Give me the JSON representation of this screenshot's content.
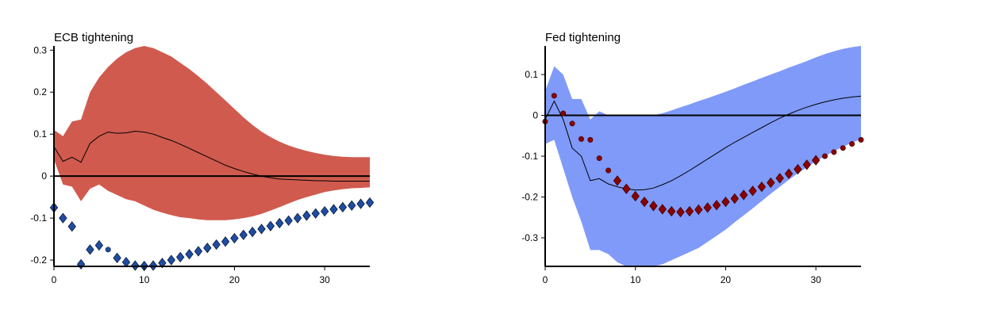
{
  "chart_data": [
    {
      "type": "line",
      "title": "ECB tightening",
      "xlim": [
        0,
        35
      ],
      "ylim": [
        -0.215,
        0.31
      ],
      "xticks": [
        0,
        10,
        20,
        30
      ],
      "yticks": [
        -0.2,
        -0.1,
        0,
        0.1,
        0.2,
        0.3
      ],
      "ytick_labels": [
        "-0.2",
        "-0.1",
        "0",
        "0.1",
        "0.2",
        "0.3"
      ],
      "colors": {
        "band": "#D05A4E",
        "line": "#000000",
        "marker": "#1E4DA1",
        "marker_edge": "#0A1A3A"
      },
      "x": [
        0,
        1,
        2,
        3,
        4,
        5,
        6,
        7,
        8,
        9,
        10,
        11,
        12,
        13,
        14,
        15,
        16,
        17,
        18,
        19,
        20,
        21,
        22,
        23,
        24,
        25,
        26,
        27,
        28,
        29,
        30,
        31,
        32,
        33,
        34,
        35
      ],
      "series": [
        {
          "role": "band_upper",
          "values": [
            0.11,
            0.095,
            0.13,
            0.135,
            0.2,
            0.235,
            0.26,
            0.28,
            0.295,
            0.305,
            0.31,
            0.305,
            0.295,
            0.285,
            0.27,
            0.255,
            0.238,
            0.22,
            0.2,
            0.18,
            0.16,
            0.14,
            0.122,
            0.106,
            0.093,
            0.082,
            0.073,
            0.066,
            0.06,
            0.055,
            0.051,
            0.048,
            0.046,
            0.045,
            0.045,
            0.045
          ]
        },
        {
          "role": "band_lower",
          "values": [
            0.04,
            -0.02,
            -0.025,
            -0.06,
            -0.03,
            -0.02,
            -0.035,
            -0.045,
            -0.055,
            -0.06,
            -0.07,
            -0.08,
            -0.087,
            -0.093,
            -0.098,
            -0.1,
            -0.103,
            -0.105,
            -0.105,
            -0.105,
            -0.103,
            -0.1,
            -0.096,
            -0.09,
            -0.082,
            -0.074,
            -0.065,
            -0.057,
            -0.05,
            -0.044,
            -0.038,
            -0.034,
            -0.031,
            -0.029,
            -0.028,
            -0.027
          ]
        },
        {
          "role": "median",
          "values": [
            0.07,
            0.035,
            0.045,
            0.033,
            0.078,
            0.095,
            0.105,
            0.102,
            0.103,
            0.107,
            0.105,
            0.1,
            0.092,
            0.085,
            0.076,
            0.066,
            0.056,
            0.046,
            0.036,
            0.026,
            0.018,
            0.011,
            0.005,
            0.0,
            -0.004,
            -0.007,
            -0.008,
            -0.009,
            -0.01,
            -0.011,
            -0.011,
            -0.012,
            -0.012,
            -0.012,
            -0.012,
            -0.012
          ]
        },
        {
          "role": "markers",
          "shapes": [
            "d",
            "d",
            "d",
            "d",
            "d",
            "d",
            "o",
            "d",
            "d",
            "d",
            "d",
            "d",
            "d",
            "d",
            "d",
            "d",
            "d",
            "d",
            "d",
            "d",
            "d",
            "d",
            "d",
            "d",
            "d",
            "d",
            "d",
            "d",
            "d",
            "d",
            "d",
            "d",
            "d",
            "d",
            "d",
            "d"
          ],
          "values": [
            -0.075,
            -0.1,
            -0.12,
            -0.21,
            -0.175,
            -0.165,
            -0.175,
            -0.195,
            -0.205,
            -0.213,
            -0.214,
            -0.213,
            -0.207,
            -0.2,
            -0.193,
            -0.186,
            -0.179,
            -0.171,
            -0.163,
            -0.156,
            -0.148,
            -0.14,
            -0.133,
            -0.126,
            -0.119,
            -0.112,
            -0.106,
            -0.1,
            -0.094,
            -0.089,
            -0.084,
            -0.079,
            -0.074,
            -0.07,
            -0.066,
            -0.063
          ]
        }
      ]
    },
    {
      "type": "line",
      "title": "Fed tightening",
      "xlim": [
        0,
        35
      ],
      "ylim": [
        -0.37,
        0.17
      ],
      "xticks": [
        0,
        10,
        20,
        30
      ],
      "yticks": [
        -0.3,
        -0.2,
        -0.1,
        0,
        0.1
      ],
      "ytick_labels": [
        "-0.3",
        "-0.2",
        "-0.1",
        "0",
        "0.1"
      ],
      "colors": {
        "band": "#7F9AF9",
        "line": "#000000",
        "marker": "#8B0000",
        "marker_edge": "#3A0000"
      },
      "x": [
        0,
        1,
        2,
        3,
        4,
        5,
        6,
        7,
        8,
        9,
        10,
        11,
        12,
        13,
        14,
        15,
        16,
        17,
        18,
        19,
        20,
        21,
        22,
        23,
        24,
        25,
        26,
        27,
        28,
        29,
        30,
        31,
        32,
        33,
        34,
        35
      ],
      "series": [
        {
          "role": "band_upper",
          "values": [
            0.06,
            0.12,
            0.1,
            0.04,
            0.04,
            -0.01,
            0.01,
            0.0,
            0.0,
            0.0,
            0.0,
            0.0,
            0.0,
            0.005,
            0.012,
            0.02,
            0.027,
            0.035,
            0.042,
            0.05,
            0.058,
            0.066,
            0.075,
            0.083,
            0.092,
            0.1,
            0.108,
            0.117,
            0.125,
            0.133,
            0.142,
            0.15,
            0.157,
            0.163,
            0.167,
            0.17
          ]
        },
        {
          "role": "band_lower",
          "values": [
            -0.07,
            -0.06,
            -0.13,
            -0.2,
            -0.26,
            -0.33,
            -0.33,
            -0.34,
            -0.36,
            -0.37,
            -0.37,
            -0.37,
            -0.37,
            -0.365,
            -0.355,
            -0.345,
            -0.335,
            -0.325,
            -0.31,
            -0.295,
            -0.28,
            -0.262,
            -0.245,
            -0.228,
            -0.21,
            -0.192,
            -0.175,
            -0.158,
            -0.142,
            -0.127,
            -0.113,
            -0.1,
            -0.088,
            -0.077,
            -0.067,
            -0.058
          ]
        },
        {
          "role": "median",
          "values": [
            -0.01,
            0.035,
            -0.01,
            -0.08,
            -0.1,
            -0.16,
            -0.155,
            -0.168,
            -0.175,
            -0.18,
            -0.183,
            -0.182,
            -0.178,
            -0.17,
            -0.16,
            -0.148,
            -0.135,
            -0.121,
            -0.107,
            -0.093,
            -0.079,
            -0.066,
            -0.054,
            -0.042,
            -0.03,
            -0.018,
            -0.007,
            0.003,
            0.012,
            0.02,
            0.027,
            0.033,
            0.038,
            0.042,
            0.045,
            0.047
          ]
        },
        {
          "role": "markers",
          "shapes": [
            "o",
            "o",
            "o",
            "o",
            "o",
            "o",
            "o",
            "o",
            "d",
            "d",
            "d",
            "d",
            "d",
            "d",
            "d",
            "d",
            "d",
            "d",
            "d",
            "d",
            "d",
            "d",
            "d",
            "d",
            "d",
            "d",
            "d",
            "d",
            "d",
            "d",
            "d",
            "o",
            "o",
            "o",
            "o",
            "o"
          ],
          "values": [
            -0.015,
            0.048,
            0.005,
            -0.02,
            -0.058,
            -0.06,
            -0.105,
            -0.135,
            -0.16,
            -0.18,
            -0.198,
            -0.212,
            -0.222,
            -0.23,
            -0.235,
            -0.237,
            -0.235,
            -0.231,
            -0.226,
            -0.22,
            -0.212,
            -0.204,
            -0.195,
            -0.185,
            -0.175,
            -0.165,
            -0.154,
            -0.143,
            -0.132,
            -0.121,
            -0.11,
            -0.1,
            -0.09,
            -0.08,
            -0.07,
            -0.06
          ]
        }
      ]
    }
  ]
}
